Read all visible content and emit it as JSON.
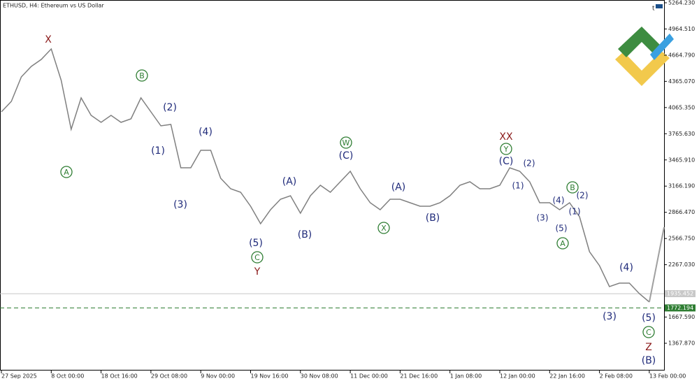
{
  "chart_data": {
    "type": "line",
    "title": "ETHUSD, H4: Ethereum vs US Dollar",
    "categories": [
      "27 Sep 2025",
      null,
      null,
      null,
      null,
      "8 Oct 00:00",
      null,
      null,
      null,
      null,
      "18 Oct 16:00",
      null,
      null,
      null,
      null,
      "29 Oct 08:00",
      null,
      null,
      null,
      null,
      "9 Nov 00:00",
      null,
      null,
      null,
      null,
      "19 Nov 16:00",
      null,
      null,
      null,
      null,
      "30 Nov 08:00",
      null,
      null,
      null,
      null,
      "11 Dec 00:00",
      null,
      null,
      null,
      null,
      "21 Dec 16:00",
      null,
      null,
      null,
      null,
      "1 Jan 08:00",
      null,
      null,
      null,
      null,
      "12 Jan 00:00",
      null,
      null,
      null,
      null,
      "22 Jan 16:00",
      null,
      null,
      null,
      null,
      "2 Feb 08:00",
      null,
      null,
      null,
      null,
      "13 Feb 00:00"
    ],
    "series": [
      {
        "name": "ETHUSD",
        "color": "#808080",
        "values": [
          4016,
          4136,
          4416,
          4536,
          4616,
          4736,
          4376,
          3816,
          4176,
          3976,
          3896,
          3976,
          3896,
          3936,
          4176,
          4016,
          3856,
          3872,
          3376,
          3376,
          3576,
          3576,
          3256,
          3136,
          3096,
          2936,
          2736,
          2896,
          3016,
          3056,
          2856,
          3056,
          3176,
          3096,
          3216,
          3336,
          3136,
          2976,
          2896,
          3016,
          3016,
          2976,
          2936,
          2936,
          2976,
          3056,
          3176,
          3216,
          3136,
          3136,
          3176,
          3376,
          3336,
          3216,
          2976,
          2976,
          2896,
          2976,
          2816,
          2416,
          2256,
          2016,
          2056,
          2056,
          1936,
          1840
        ]
      }
    ],
    "ylim": [
      1056,
      5296
    ],
    "yticks": [
      {
        "value": 5264.23,
        "label": "5264.230"
      },
      {
        "value": 4964.51,
        "label": "4964.510"
      },
      {
        "value": 4664.79,
        "label": "4664.790"
      },
      {
        "value": 4365.07,
        "label": "4365.070"
      },
      {
        "value": 4065.35,
        "label": "4065.350"
      },
      {
        "value": 3765.63,
        "label": "3765.630"
      },
      {
        "value": 3465.91,
        "label": "3465.910"
      },
      {
        "value": 3166.19,
        "label": "3166.190"
      },
      {
        "value": 2866.47,
        "label": "2866.470"
      },
      {
        "value": 2566.75,
        "label": "2566.750"
      },
      {
        "value": 2267.03,
        "label": "2267.030"
      },
      {
        "value": 1667.59,
        "label": "1667.590"
      },
      {
        "value": 1367.87,
        "label": "1367.870"
      }
    ],
    "price_lines": [
      {
        "value": 1935.452,
        "color": "#c8c8c8",
        "dashed": false
      },
      {
        "value": 1772.194,
        "color": "#2e7d32",
        "dashed": true
      }
    ],
    "annotations": [
      {
        "text": "X",
        "kind": "major"
      },
      {
        "text": "A",
        "kind": "circle"
      },
      {
        "text": "B",
        "kind": "circle"
      },
      {
        "text": "(1)",
        "kind": "wave"
      },
      {
        "text": "(2)",
        "kind": "wave"
      },
      {
        "text": "(3)",
        "kind": "wave"
      },
      {
        "text": "(4)",
        "kind": "wave"
      },
      {
        "text": "(5)",
        "kind": "wave"
      },
      {
        "text": "C",
        "kind": "circle"
      },
      {
        "text": "Y",
        "kind": "major"
      },
      {
        "text": "(A)",
        "kind": "wave"
      },
      {
        "text": "(B)",
        "kind": "wave"
      },
      {
        "text": "W",
        "kind": "circle"
      },
      {
        "text": "(C)",
        "kind": "wave"
      },
      {
        "text": "X",
        "kind": "circle"
      },
      {
        "text": "(A)",
        "kind": "wave"
      },
      {
        "text": "(B)",
        "kind": "wave"
      },
      {
        "text": "XX",
        "kind": "major"
      },
      {
        "text": "Y",
        "kind": "circle"
      },
      {
        "text": "(C)",
        "kind": "wave"
      },
      {
        "text": "(2)",
        "kind": "minor"
      },
      {
        "text": "(1)",
        "kind": "minor"
      },
      {
        "text": "(3)",
        "kind": "minor"
      },
      {
        "text": "(4)",
        "kind": "minor"
      },
      {
        "text": "B",
        "kind": "circle"
      },
      {
        "text": "(2)",
        "kind": "minor"
      },
      {
        "text": "(1)",
        "kind": "minor"
      },
      {
        "text": "(5)",
        "kind": "minor"
      },
      {
        "text": "A",
        "kind": "circle"
      },
      {
        "text": "(4)",
        "kind": "wave"
      },
      {
        "text": "(3)",
        "kind": "wave"
      },
      {
        "text": "(5)",
        "kind": "wave"
      },
      {
        "text": "C",
        "kind": "circle"
      },
      {
        "text": "Z",
        "kind": "major"
      },
      {
        "text": "(B)",
        "kind": "wave"
      }
    ]
  }
}
